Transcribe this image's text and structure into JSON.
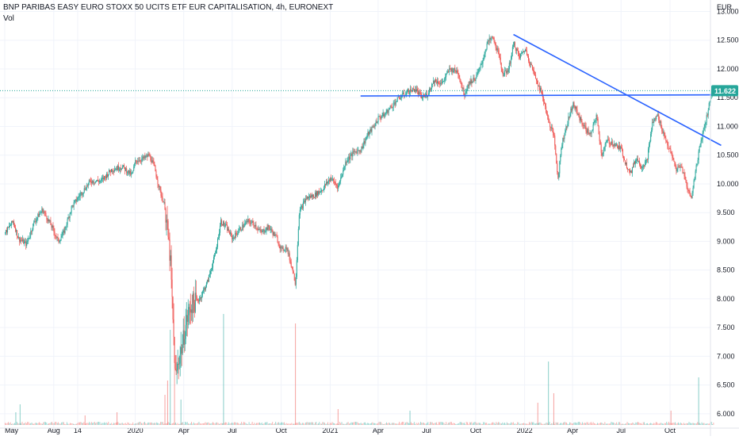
{
  "header": {
    "title": "BNP PARIBAS EASY EURO STOXX 50 UCITS ETF EUR CAPITALISATION, 4h, EURONEXT",
    "volume_label": "Vol"
  },
  "price_axis_unit": "EUR",
  "colors": {
    "up": "#26a69a",
    "down": "#ef5350",
    "trendline": "#2962ff",
    "last_price": "#26a69a",
    "grid": "#f0f3fa",
    "axis_text": "#131722"
  },
  "chart_data": {
    "type": "candlestick",
    "title": "BNP PARIBAS EASY EURO STOXX 50 UCITS ETF EUR CAPITALISATION, 4h, EURONEXT",
    "ylabel": "EUR",
    "ylim": [
      5.75,
      13.2
    ],
    "y_ticks": [
      "6.000",
      "6.500",
      "7.000",
      "7.500",
      "8.000",
      "8.500",
      "9.000",
      "9.500",
      "10.000",
      "10.500",
      "11.000",
      "11.500",
      "12.000",
      "12.500",
      "13.000"
    ],
    "x_ticks": [
      {
        "label": "May",
        "t": 0
      },
      {
        "label": "Aug",
        "t": 92
      },
      {
        "label": "14",
        "t": 137
      },
      {
        "label": "2020",
        "t": 245
      },
      {
        "label": "Apr",
        "t": 336
      },
      {
        "label": "Jul",
        "t": 427
      },
      {
        "label": "Oct",
        "t": 519
      },
      {
        "label": "2021",
        "t": 611
      },
      {
        "label": "Apr",
        "t": 701
      },
      {
        "label": "Jul",
        "t": 792
      },
      {
        "label": "Oct",
        "t": 884
      },
      {
        "label": "2022",
        "t": 976
      },
      {
        "label": "Apr",
        "t": 1066
      },
      {
        "label": "Jul",
        "t": 1157
      },
      {
        "label": "Oct",
        "t": 1249
      }
    ],
    "xlim": [
      0,
      1310
    ],
    "price_path": [
      [
        0,
        9.15
      ],
      [
        15,
        9.35
      ],
      [
        25,
        9.05
      ],
      [
        40,
        8.95
      ],
      [
        55,
        9.35
      ],
      [
        70,
        9.55
      ],
      [
        85,
        9.3
      ],
      [
        100,
        9.0
      ],
      [
        110,
        9.15
      ],
      [
        125,
        9.6
      ],
      [
        140,
        9.8
      ],
      [
        160,
        10.05
      ],
      [
        180,
        10.05
      ],
      [
        200,
        10.25
      ],
      [
        220,
        10.3
      ],
      [
        238,
        10.15
      ],
      [
        245,
        10.4
      ],
      [
        262,
        10.45
      ],
      [
        270,
        10.5
      ],
      [
        280,
        10.3
      ],
      [
        290,
        9.9
      ],
      [
        300,
        9.6
      ],
      [
        305,
        9.15
      ],
      [
        310,
        8.7
      ],
      [
        315,
        7.6
      ],
      [
        320,
        6.6
      ],
      [
        327,
        7.0
      ],
      [
        333,
        7.2
      ],
      [
        340,
        7.6
      ],
      [
        350,
        7.9
      ],
      [
        365,
        8.0
      ],
      [
        380,
        8.3
      ],
      [
        395,
        8.8
      ],
      [
        405,
        9.35
      ],
      [
        415,
        9.25
      ],
      [
        427,
        9.05
      ],
      [
        440,
        9.2
      ],
      [
        455,
        9.35
      ],
      [
        468,
        9.3
      ],
      [
        480,
        9.15
      ],
      [
        495,
        9.25
      ],
      [
        510,
        9.05
      ],
      [
        519,
        8.85
      ],
      [
        528,
        8.9
      ],
      [
        540,
        8.5
      ],
      [
        545,
        8.25
      ],
      [
        552,
        9.5
      ],
      [
        565,
        9.75
      ],
      [
        580,
        9.8
      ],
      [
        595,
        9.9
      ],
      [
        611,
        10.1
      ],
      [
        625,
        9.95
      ],
      [
        640,
        10.4
      ],
      [
        655,
        10.55
      ],
      [
        668,
        10.6
      ],
      [
        680,
        10.85
      ],
      [
        692,
        11.0
      ],
      [
        701,
        11.15
      ],
      [
        712,
        11.2
      ],
      [
        725,
        11.35
      ],
      [
        740,
        11.5
      ],
      [
        755,
        11.6
      ],
      [
        770,
        11.65
      ],
      [
        782,
        11.5
      ],
      [
        792,
        11.55
      ],
      [
        805,
        11.8
      ],
      [
        820,
        11.75
      ],
      [
        835,
        12.0
      ],
      [
        850,
        11.95
      ],
      [
        862,
        11.55
      ],
      [
        870,
        11.75
      ],
      [
        884,
        11.85
      ],
      [
        895,
        12.1
      ],
      [
        905,
        12.45
      ],
      [
        915,
        12.55
      ],
      [
        925,
        12.3
      ],
      [
        935,
        11.9
      ],
      [
        945,
        12.0
      ],
      [
        955,
        12.45
      ],
      [
        965,
        12.2
      ],
      [
        976,
        12.35
      ],
      [
        988,
        12.05
      ],
      [
        1000,
        11.75
      ],
      [
        1010,
        11.5
      ],
      [
        1020,
        11.1
      ],
      [
        1030,
        10.85
      ],
      [
        1038,
        10.1
      ],
      [
        1045,
        10.7
      ],
      [
        1055,
        11.05
      ],
      [
        1066,
        11.4
      ],
      [
        1078,
        11.15
      ],
      [
        1090,
        10.95
      ],
      [
        1100,
        10.85
      ],
      [
        1110,
        11.2
      ],
      [
        1120,
        10.5
      ],
      [
        1130,
        10.75
      ],
      [
        1142,
        10.7
      ],
      [
        1157,
        10.6
      ],
      [
        1165,
        10.35
      ],
      [
        1175,
        10.2
      ],
      [
        1185,
        10.45
      ],
      [
        1195,
        10.3
      ],
      [
        1205,
        10.4
      ],
      [
        1215,
        11.05
      ],
      [
        1225,
        11.2
      ],
      [
        1235,
        10.9
      ],
      [
        1249,
        10.55
      ],
      [
        1260,
        10.25
      ],
      [
        1270,
        10.3
      ],
      [
        1280,
        9.95
      ],
      [
        1288,
        9.75
      ],
      [
        1295,
        10.15
      ],
      [
        1303,
        10.6
      ],
      [
        1310,
        10.9
      ],
      [
        1318,
        11.2
      ],
      [
        1325,
        11.55
      ],
      [
        1330,
        11.62
      ]
    ],
    "trendlines": [
      {
        "name": "support",
        "x1": 668,
        "y1": 11.53,
        "x2": 1345,
        "y2": 11.55
      },
      {
        "name": "resistance",
        "x1": 955,
        "y1": 12.6,
        "x2": 1345,
        "y2": 10.67
      }
    ],
    "last_price": {
      "value": 11.622,
      "label": "11.622"
    },
    "volume_spikes": [
      {
        "t": 20,
        "v": 0.8,
        "dir": "up"
      },
      {
        "t": 28,
        "v": 1.3,
        "dir": "up"
      },
      {
        "t": 150,
        "v": 0.6,
        "dir": "down"
      },
      {
        "t": 210,
        "v": 0.8,
        "dir": "down"
      },
      {
        "t": 300,
        "v": 1.9,
        "dir": "down"
      },
      {
        "t": 305,
        "v": 2.8,
        "dir": "down"
      },
      {
        "t": 310,
        "v": 6.0,
        "dir": "up"
      },
      {
        "t": 318,
        "v": 4.2,
        "dir": "down"
      },
      {
        "t": 330,
        "v": 1.6,
        "dir": "up"
      },
      {
        "t": 410,
        "v": 7.0,
        "dir": "up"
      },
      {
        "t": 545,
        "v": 6.4,
        "dir": "down"
      },
      {
        "t": 625,
        "v": 1.0,
        "dir": "down"
      },
      {
        "t": 760,
        "v": 0.9,
        "dir": "up"
      },
      {
        "t": 1000,
        "v": 1.4,
        "dir": "down"
      },
      {
        "t": 1020,
        "v": 4.0,
        "dir": "up"
      },
      {
        "t": 1030,
        "v": 2.0,
        "dir": "down"
      },
      {
        "t": 1250,
        "v": 0.9,
        "dir": "down"
      },
      {
        "t": 1302,
        "v": 3.0,
        "dir": "up"
      }
    ]
  }
}
